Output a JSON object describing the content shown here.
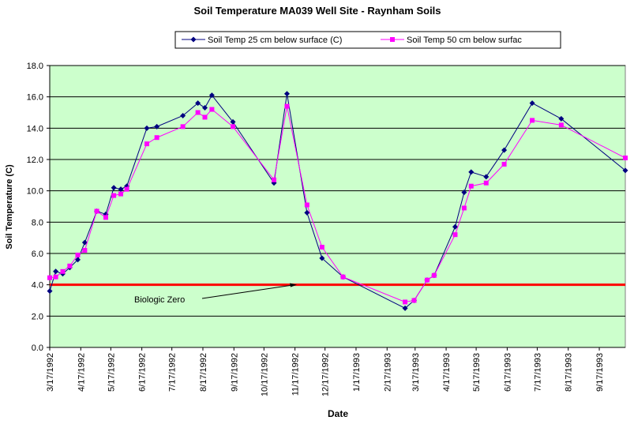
{
  "chart_data": {
    "type": "line",
    "title": "Soil Temperature MA039 Well Site - Raynham Soils",
    "xlabel": "Date",
    "ylabel": "Soil Temperature (C)",
    "x": [
      "3/17/1992",
      "3/23/1992",
      "3/30/1992",
      "4/6/1992",
      "4/14/1992",
      "4/21/1992",
      "5/3/1992",
      "5/12/1992",
      "5/20/1992",
      "5/27/1992",
      "6/2/1992",
      "6/22/1992",
      "7/2/1992",
      "7/28/1992",
      "8/12/1992",
      "8/19/1992",
      "8/26/1992",
      "9/16/1992",
      "10/27/1992",
      "11/9/1992",
      "11/29/1992",
      "12/14/1992",
      "1/4/1993",
      "3/7/1993",
      "3/16/1993",
      "3/29/1993",
      "4/5/1993",
      "4/26/1993",
      "5/5/1993",
      "5/12/1993",
      "5/27/1993",
      "6/14/1993",
      "7/12/1993",
      "8/10/1993",
      "10/13/1993"
    ],
    "series": [
      {
        "name": "Soil Temp 25 cm below surface (C)",
        "color": "#000080",
        "marker": "diamond",
        "values": [
          3.6,
          4.85,
          4.7,
          5.1,
          5.6,
          6.7,
          8.7,
          8.5,
          10.2,
          10.1,
          10.3,
          14.0,
          14.1,
          14.8,
          15.6,
          15.3,
          16.1,
          14.4,
          10.5,
          16.2,
          8.6,
          5.7,
          4.5,
          2.5,
          3.0,
          4.3,
          4.6,
          7.7,
          9.9,
          11.2,
          10.9,
          12.6,
          15.6,
          14.6,
          11.3
        ]
      },
      {
        "name": "Soil Temp 50 cm below surfac",
        "color": "#ff00ff",
        "marker": "square",
        "values": [
          4.45,
          4.5,
          4.85,
          5.2,
          5.9,
          6.2,
          8.7,
          8.3,
          9.7,
          9.8,
          10.1,
          13.0,
          13.4,
          14.1,
          15.0,
          14.7,
          15.2,
          14.1,
          10.7,
          15.4,
          9.1,
          6.4,
          4.5,
          2.9,
          3.0,
          4.3,
          4.6,
          7.2,
          8.9,
          10.3,
          10.5,
          11.7,
          14.5,
          14.2,
          12.1
        ]
      }
    ],
    "reference_line": {
      "value": 4,
      "color": "#ff0000"
    },
    "annotation": "Biologic Zero",
    "xlim": [
      "3/17/1992",
      "10/13/1993"
    ],
    "xticks": [
      "3/17/1992",
      "4/17/1992",
      "5/17/1992",
      "6/17/1992",
      "7/17/1992",
      "8/17/1992",
      "9/17/1992",
      "10/17/1992",
      "11/17/1992",
      "12/17/1992",
      "1/17/1993",
      "2/17/1993",
      "3/17/1993",
      "4/17/1993",
      "5/17/1993",
      "6/17/1993",
      "7/17/1993",
      "8/17/1993",
      "9/17/1993"
    ],
    "ylim": [
      0,
      18
    ],
    "yticks": [
      {
        "value": 0,
        "label": "0.0"
      },
      {
        "value": 2,
        "label": "2.0"
      },
      {
        "value": 4,
        "label": "4.0"
      },
      {
        "value": 6,
        "label": "6.0"
      },
      {
        "value": 8,
        "label": "8.0"
      },
      {
        "value": 10,
        "label": "10.0"
      },
      {
        "value": 12,
        "label": "12.0"
      },
      {
        "value": 14,
        "label": "14.0"
      },
      {
        "value": 16,
        "label": "16.0"
      },
      {
        "value": 18,
        "label": "18.0"
      }
    ],
    "grid": true,
    "background": "#ccffcc",
    "legend": "top"
  }
}
